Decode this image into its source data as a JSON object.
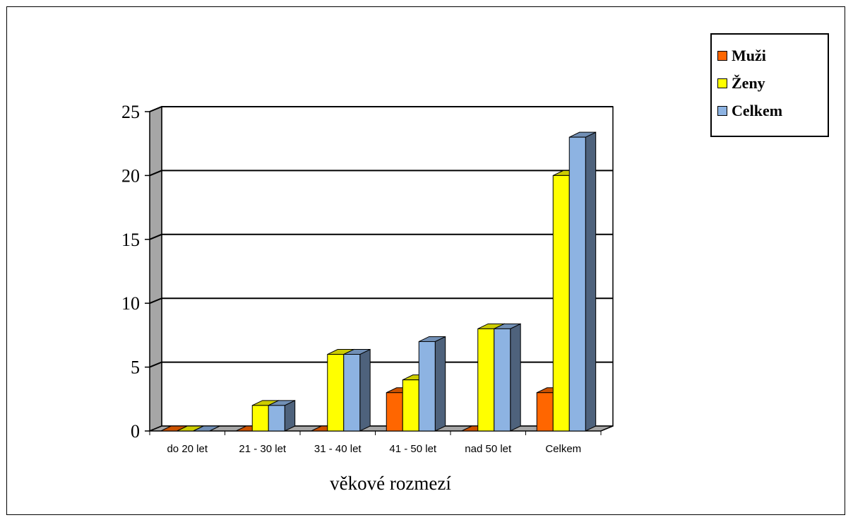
{
  "chart_data": {
    "type": "bar",
    "categories": [
      "do 20 let",
      "21 - 30 let",
      "31 - 40 let",
      "41 - 50 let",
      "nad 50 let",
      "Celkem"
    ],
    "series": [
      {
        "name": "Muži",
        "color": "#FF6600",
        "values": [
          0,
          0,
          0,
          3,
          0,
          3
        ]
      },
      {
        "name": "Ženy",
        "color": "#FFFF00",
        "values": [
          0,
          2,
          6,
          4,
          8,
          20
        ]
      },
      {
        "name": "Celkem",
        "color": "#8DB3E2",
        "values": [
          0,
          2,
          6,
          7,
          8,
          23
        ]
      }
    ],
    "xlabel": "věkové rozmezí",
    "ylabel": "",
    "ylim": [
      0,
      25
    ],
    "yticks": [
      0,
      5,
      10,
      15,
      20,
      25
    ],
    "grid": true,
    "legend": "top-right",
    "three_d": true
  }
}
